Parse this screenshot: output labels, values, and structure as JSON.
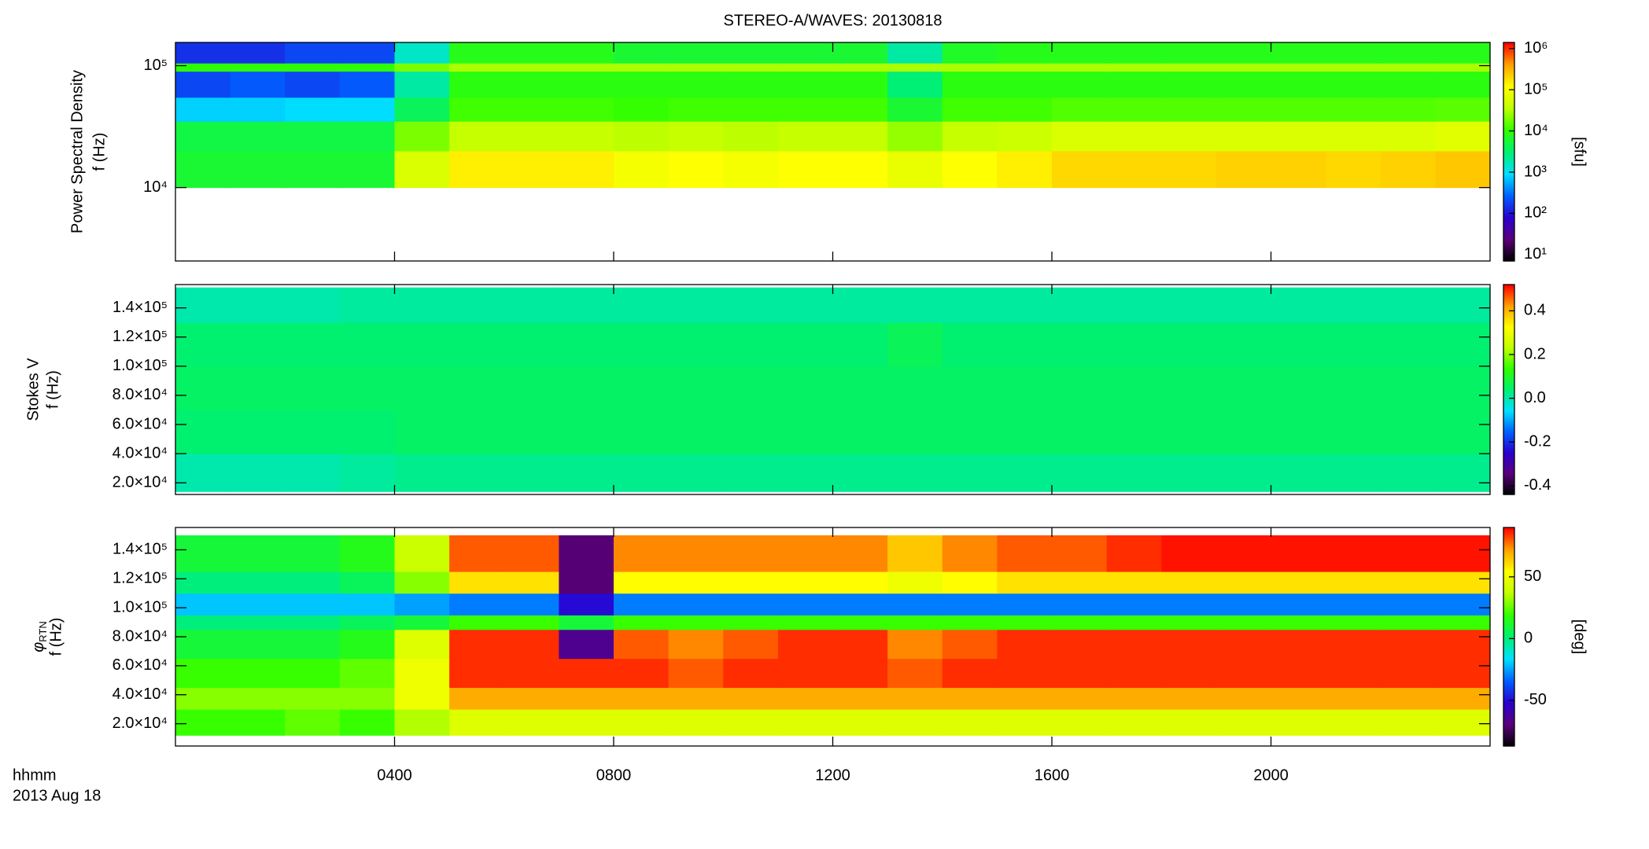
{
  "chart_data": [
    {
      "type": "heatmap",
      "title": "STEREO-A/WAVES: 20130818",
      "ylabel": "Power Spectral Density",
      "ylabel2": "f (Hz)",
      "clabel": "[sfu]",
      "x": [
        0,
        60,
        120,
        180,
        240,
        300,
        360,
        420,
        480,
        540,
        600,
        660,
        720,
        780,
        840,
        900,
        960,
        1020,
        1080,
        1140,
        1200,
        1260,
        1320,
        1380,
        1440
      ],
      "y": [
        10000,
        20000,
        35000,
        55000,
        90000,
        105000,
        155000
      ],
      "z": [
        [
          6000,
          6000,
          6000,
          6000,
          60000,
          150000,
          150000,
          150000,
          100000,
          120000,
          100000,
          120000,
          120000,
          80000,
          120000,
          150000,
          200000,
          200000,
          200000,
          220000,
          220000,
          200000,
          220000,
          250000
        ],
        [
          5000,
          5000,
          5000,
          5000,
          20000,
          40000,
          40000,
          40000,
          35000,
          40000,
          35000,
          40000,
          40000,
          25000,
          40000,
          45000,
          60000,
          60000,
          60000,
          60000,
          60000,
          60000,
          60000,
          70000
        ],
        [
          800,
          800,
          900,
          900,
          4000,
          12000,
          12000,
          12000,
          11000,
          12000,
          12000,
          12000,
          12000,
          6000,
          12000,
          12000,
          14000,
          14000,
          14000,
          14000,
          14000,
          14000,
          14000,
          15000
        ],
        [
          200,
          250,
          200,
          250,
          2000,
          9000,
          9000,
          9000,
          9000,
          9000,
          9000,
          9000,
          9000,
          3000,
          9000,
          9000,
          9000,
          9000,
          9000,
          9000,
          9000,
          9000,
          9000,
          9000
        ],
        [
          10000,
          10000,
          10000,
          10000,
          20000,
          30000,
          30000,
          30000,
          30000,
          30000,
          30000,
          30000,
          30000,
          30000,
          30000,
          30000,
          30000,
          30000,
          30000,
          30000,
          30000,
          30000,
          30000,
          30000
        ],
        [
          150,
          150,
          200,
          200,
          1500,
          8000,
          8000,
          8000,
          6000,
          6000,
          6000,
          6000,
          6000,
          2000,
          7000,
          8000,
          8000,
          8000,
          8000,
          8000,
          8000,
          8000,
          8000,
          8000
        ]
      ],
      "xlim": [
        0,
        1440
      ],
      "xticks": [
        240,
        480,
        720,
        960,
        1200
      ],
      "ylog": true,
      "ylim": [
        2500,
        155000
      ],
      "yticks": [
        {
          "value": 10000,
          "label": "10⁴"
        },
        {
          "value": 100000,
          "label": "10⁵"
        }
      ],
      "clog": true,
      "clim": [
        7,
        1400000
      ],
      "cticks": [
        {
          "value": 10,
          "label": "10¹"
        },
        {
          "value": 100,
          "label": "10²"
        },
        {
          "value": 1000,
          "label": "10³"
        },
        {
          "value": 10000,
          "label": "10⁴"
        },
        {
          "value": 100000,
          "label": "10⁵"
        },
        {
          "value": 1000000,
          "label": "10⁶"
        }
      ],
      "colorscale": [
        "#000000",
        "#5a007a",
        "#2a00d0",
        "#0060ff",
        "#00e0ff",
        "#00f070",
        "#30ff00",
        "#c0ff00",
        "#ffff00",
        "#ffa000",
        "#ff0000"
      ]
    },
    {
      "type": "heatmap",
      "ylabel": "Stokes V",
      "ylabel2": "f (Hz)",
      "x": [
        0,
        60,
        120,
        180,
        240,
        300,
        360,
        420,
        480,
        540,
        600,
        660,
        720,
        780,
        840,
        900,
        960,
        1020,
        1080,
        1140,
        1200,
        1260,
        1320,
        1380,
        1440
      ],
      "y": [
        14000,
        40000,
        70000,
        100000,
        130000,
        154000
      ],
      "z": [
        [
          0.0,
          0.0,
          0.0,
          0.01,
          0.02,
          0.02,
          0.02,
          0.02,
          0.02,
          0.02,
          0.02,
          0.02,
          0.02,
          0.02,
          0.02,
          0.02,
          0.02,
          0.02,
          0.02,
          0.02,
          0.02,
          0.02,
          0.02,
          0.02
        ],
        [
          0.04,
          0.04,
          0.04,
          0.04,
          0.05,
          0.05,
          0.05,
          0.05,
          0.05,
          0.05,
          0.05,
          0.05,
          0.05,
          0.05,
          0.05,
          0.05,
          0.05,
          0.05,
          0.05,
          0.05,
          0.05,
          0.05,
          0.05,
          0.05
        ],
        [
          0.05,
          0.05,
          0.05,
          0.05,
          0.05,
          0.05,
          0.05,
          0.05,
          0.05,
          0.05,
          0.05,
          0.05,
          0.05,
          0.05,
          0.05,
          0.05,
          0.05,
          0.05,
          0.05,
          0.05,
          0.05,
          0.05,
          0.05,
          0.05
        ],
        [
          0.04,
          0.04,
          0.04,
          0.04,
          0.04,
          0.04,
          0.04,
          0.04,
          0.04,
          0.04,
          0.04,
          0.04,
          0.04,
          0.06,
          0.04,
          0.04,
          0.04,
          0.04,
          0.04,
          0.04,
          0.04,
          0.04,
          0.04,
          0.04
        ],
        [
          0.0,
          0.0,
          0.0,
          0.01,
          0.01,
          0.01,
          0.01,
          0.01,
          0.01,
          0.01,
          0.01,
          0.01,
          0.01,
          0.01,
          0.01,
          0.01,
          0.01,
          0.01,
          0.01,
          0.01,
          0.01,
          0.01,
          0.01,
          0.01
        ]
      ],
      "xlim": [
        0,
        1440
      ],
      "xticks": [
        240,
        480,
        720,
        960,
        1200
      ],
      "ylog": false,
      "ylim": [
        12000,
        156000
      ],
      "yticks": [
        {
          "value": 20000,
          "label": "2.0×10⁴"
        },
        {
          "value": 40000,
          "label": "4.0×10⁴"
        },
        {
          "value": 60000,
          "label": "6.0×10⁴"
        },
        {
          "value": 80000,
          "label": "8.0×10⁴"
        },
        {
          "value": 100000,
          "label": "1.0×10⁵"
        },
        {
          "value": 120000,
          "label": "1.2×10⁵"
        },
        {
          "value": 140000,
          "label": "1.4×10⁵"
        }
      ],
      "clog": false,
      "clim": [
        -0.44,
        0.52
      ],
      "cticks": [
        -0.4,
        -0.2,
        {
          "value": 0,
          "label": "0.0"
        },
        0.2,
        0.4
      ],
      "colorscale": [
        "#000000",
        "#5a007a",
        "#2a00d0",
        "#0060ff",
        "#00e0ff",
        "#00f070",
        "#30ff00",
        "#c0ff00",
        "#ffff00",
        "#ffa000",
        "#ff0000"
      ]
    },
    {
      "type": "heatmap",
      "ylabel_symbol": "φ",
      "ylabel_sub": "RTN",
      "ylabel2": "f (Hz)",
      "clabel": "[deg]",
      "xlabel": "hhmm",
      "date": "2013 Aug 18",
      "x": [
        0,
        60,
        120,
        180,
        240,
        300,
        360,
        420,
        480,
        540,
        600,
        660,
        720,
        780,
        840,
        900,
        960,
        1020,
        1080,
        1140,
        1200,
        1260,
        1320,
        1380,
        1440
      ],
      "y": [
        12000,
        30000,
        45000,
        65000,
        85000,
        95000,
        110000,
        125000,
        150000
      ],
      "z": [
        [
          20,
          20,
          25,
          20,
          35,
          45,
          45,
          45,
          45,
          45,
          45,
          45,
          45,
          45,
          45,
          45,
          45,
          45,
          45,
          45,
          45,
          45,
          45,
          45
        ],
        [
          30,
          30,
          30,
          30,
          50,
          70,
          70,
          70,
          70,
          70,
          70,
          70,
          70,
          70,
          70,
          70,
          70,
          70,
          70,
          70,
          70,
          70,
          70,
          70
        ],
        [
          20,
          20,
          20,
          25,
          50,
          85,
          85,
          85,
          85,
          80,
          85,
          85,
          85,
          80,
          85,
          85,
          85,
          85,
          85,
          85,
          85,
          85,
          85,
          85
        ],
        [
          10,
          10,
          10,
          15,
          45,
          85,
          85,
          -65,
          80,
          75,
          80,
          85,
          85,
          75,
          80,
          85,
          85,
          85,
          85,
          85,
          85,
          85,
          85,
          85
        ],
        [
          0,
          0,
          0,
          5,
          10,
          20,
          20,
          10,
          20,
          20,
          20,
          20,
          20,
          20,
          20,
          20,
          20,
          20,
          20,
          20,
          20,
          20,
          20,
          20
        ],
        [
          -20,
          -20,
          -20,
          -20,
          -25,
          -30,
          -30,
          -50,
          -30,
          -30,
          -30,
          -30,
          -30,
          -30,
          -30,
          -30,
          -30,
          -30,
          -30,
          -30,
          -30,
          -30,
          -30,
          -30
        ],
        [
          0,
          0,
          0,
          5,
          30,
          60,
          60,
          -70,
          55,
          55,
          55,
          55,
          55,
          50,
          55,
          60,
          60,
          60,
          60,
          60,
          60,
          60,
          60,
          60
        ],
        [
          10,
          10,
          10,
          15,
          40,
          80,
          80,
          -70,
          75,
          75,
          75,
          75,
          75,
          65,
          75,
          80,
          80,
          85,
          88,
          88,
          88,
          88,
          88,
          88
        ]
      ],
      "xlim": [
        0,
        1440
      ],
      "xticks": [
        {
          "value": 240,
          "label": "0400"
        },
        {
          "value": 480,
          "label": "0800"
        },
        {
          "value": 720,
          "label": "1200"
        },
        {
          "value": 960,
          "label": "1600"
        },
        {
          "value": 1200,
          "label": "2000"
        }
      ],
      "ylog": false,
      "ylim": [
        4600,
        155400
      ],
      "yticks": [
        {
          "value": 20000,
          "label": "2.0×10⁴"
        },
        {
          "value": 40000,
          "label": "4.0×10⁴"
        },
        {
          "value": 60000,
          "label": "6.0×10⁴"
        },
        {
          "value": 80000,
          "label": "8.0×10⁴"
        },
        {
          "value": 100000,
          "label": "1.0×10⁵"
        },
        {
          "value": 120000,
          "label": "1.2×10⁵"
        },
        {
          "value": 140000,
          "label": "1.4×10⁵"
        }
      ],
      "clog": false,
      "clim": [
        -87,
        90
      ],
      "cticks": [
        -50,
        0,
        50
      ],
      "colorscale": [
        "#000000",
        "#5a007a",
        "#2a00d0",
        "#0060ff",
        "#00e0ff",
        "#00f070",
        "#30ff00",
        "#c0ff00",
        "#ffff00",
        "#ffa000",
        "#ff0000"
      ]
    }
  ]
}
